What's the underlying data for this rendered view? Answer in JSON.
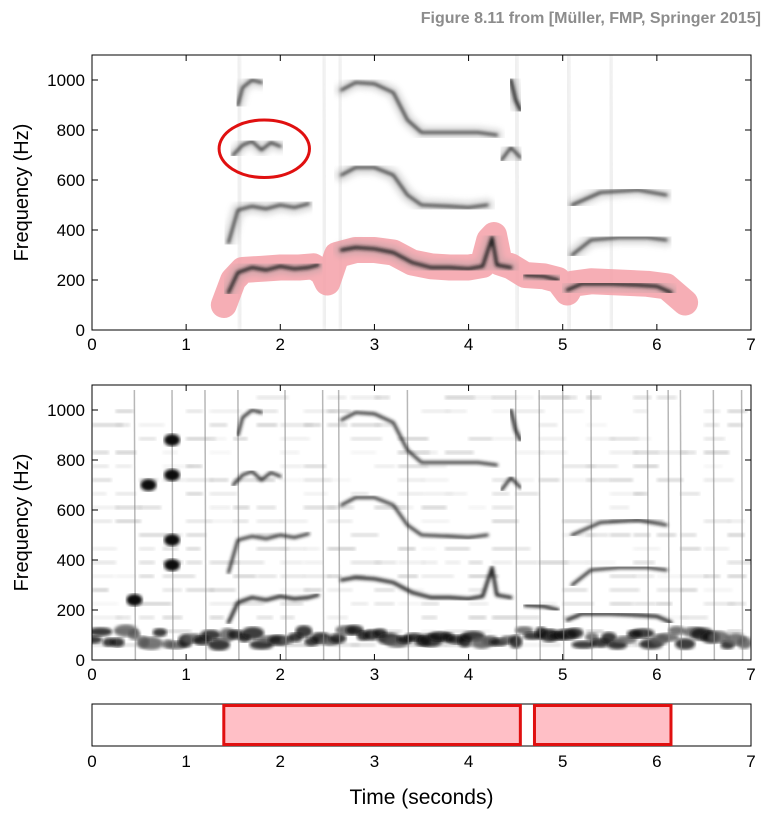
{
  "caption": "Figure 8.11 from [Müller, FMP, Springer 2015]",
  "chart_data": [
    {
      "type": "heatmap",
      "panel": "top",
      "description_of_content": "salience representation with extracted melody",
      "ylabel": "Frequency (Hz)",
      "xlabel": "",
      "xlim": [
        0,
        7
      ],
      "ylim": [
        0,
        1100
      ],
      "xticks": [
        "0",
        "1",
        "2",
        "3",
        "4",
        "5",
        "6",
        "7"
      ],
      "yticks": [
        "0",
        "200",
        "400",
        "600",
        "800",
        "1000"
      ],
      "grid": false,
      "harmonics": [
        {
          "order": 1,
          "points": [
            [
              1.45,
              150
            ],
            [
              1.55,
              230
            ],
            [
              1.7,
              250
            ],
            [
              1.85,
              240
            ],
            [
              2.0,
              255
            ],
            [
              2.15,
              245
            ],
            [
              2.3,
              250
            ],
            [
              2.4,
              260
            ]
          ]
        },
        {
          "order": 2,
          "points": [
            [
              1.45,
              350
            ],
            [
              1.55,
              480
            ],
            [
              1.7,
              495
            ],
            [
              1.85,
              485
            ],
            [
              2.0,
              500
            ],
            [
              2.15,
              490
            ],
            [
              2.3,
              505
            ]
          ]
        },
        {
          "order": 3,
          "points": [
            [
              1.5,
              700
            ],
            [
              1.6,
              740
            ],
            [
              1.7,
              755
            ],
            [
              1.8,
              720
            ],
            [
              1.9,
              750
            ],
            [
              2.0,
              735
            ]
          ]
        },
        {
          "order": 4,
          "points": [
            [
              1.55,
              900
            ],
            [
              1.6,
              970
            ],
            [
              1.7,
              1000
            ],
            [
              1.8,
              990
            ]
          ]
        },
        {
          "order": 1,
          "points": [
            [
              2.65,
              320
            ],
            [
              2.8,
              330
            ],
            [
              3.0,
              325
            ],
            [
              3.2,
              310
            ],
            [
              3.4,
              270
            ],
            [
              3.6,
              250
            ],
            [
              3.8,
              250
            ],
            [
              4.0,
              245
            ],
            [
              4.15,
              255
            ],
            [
              4.25,
              370
            ],
            [
              4.3,
              260
            ],
            [
              4.45,
              250
            ]
          ]
        },
        {
          "order": 2,
          "points": [
            [
              2.65,
              620
            ],
            [
              2.8,
              650
            ],
            [
              3.0,
              650
            ],
            [
              3.2,
              620
            ],
            [
              3.35,
              540
            ],
            [
              3.5,
              500
            ],
            [
              3.8,
              495
            ],
            [
              4.0,
              490
            ],
            [
              4.2,
              500
            ]
          ]
        },
        {
          "order": 3,
          "points": [
            [
              2.65,
              960
            ],
            [
              2.8,
              990
            ],
            [
              3.0,
              985
            ],
            [
              3.2,
              950
            ],
            [
              3.35,
              840
            ],
            [
              3.5,
              790
            ],
            [
              3.8,
              790
            ],
            [
              4.1,
              790
            ],
            [
              4.3,
              780
            ]
          ]
        },
        {
          "order": 2,
          "points": [
            [
              4.35,
              680
            ],
            [
              4.45,
              730
            ],
            [
              4.55,
              690
            ]
          ]
        },
        {
          "order": 1,
          "points": [
            [
              4.45,
              1000
            ],
            [
              4.5,
              920
            ],
            [
              4.55,
              880
            ]
          ]
        },
        {
          "order": 1,
          "points": [
            [
              4.6,
              220
            ],
            [
              4.8,
              215
            ],
            [
              4.95,
              200
            ]
          ]
        },
        {
          "order": 1,
          "points": [
            [
              5.05,
              160
            ],
            [
              5.2,
              185
            ],
            [
              5.5,
              185
            ],
            [
              5.8,
              180
            ],
            [
              6.0,
              175
            ],
            [
              6.15,
              150
            ]
          ]
        },
        {
          "order": 2,
          "points": [
            [
              5.1,
              300
            ],
            [
              5.3,
              360
            ],
            [
              5.6,
              370
            ],
            [
              5.9,
              370
            ],
            [
              6.1,
              360
            ]
          ]
        },
        {
          "order": 3,
          "points": [
            [
              5.1,
              500
            ],
            [
              5.4,
              550
            ],
            [
              5.8,
              560
            ],
            [
              6.1,
              540
            ]
          ]
        }
      ],
      "melody_path": [
        [
          1.4,
          100
        ],
        [
          1.5,
          200
        ],
        [
          1.6,
          240
        ],
        [
          1.8,
          245
        ],
        [
          2.0,
          250
        ],
        [
          2.2,
          250
        ],
        [
          2.35,
          255
        ],
        [
          2.45,
          230
        ],
        [
          2.5,
          190
        ],
        [
          2.6,
          300
        ],
        [
          2.8,
          320
        ],
        [
          3.0,
          320
        ],
        [
          3.2,
          310
        ],
        [
          3.4,
          270
        ],
        [
          3.6,
          255
        ],
        [
          3.8,
          250
        ],
        [
          4.0,
          250
        ],
        [
          4.15,
          260
        ],
        [
          4.22,
          360
        ],
        [
          4.27,
          380
        ],
        [
          4.33,
          270
        ],
        [
          4.45,
          255
        ],
        [
          4.6,
          220
        ],
        [
          4.8,
          215
        ],
        [
          4.95,
          200
        ],
        [
          5.05,
          150
        ],
        [
          5.1,
          185
        ],
        [
          5.3,
          195
        ],
        [
          5.6,
          190
        ],
        [
          5.9,
          185
        ],
        [
          6.1,
          175
        ],
        [
          6.3,
          110
        ]
      ],
      "ellipse": {
        "cx": 1.83,
        "cy": 725,
        "rx": 0.48,
        "ry": 115
      }
    },
    {
      "type": "heatmap",
      "panel": "middle",
      "ylabel": "Frequency (Hz)",
      "xlabel": "",
      "xlim": [
        0,
        7
      ],
      "ylim": [
        0,
        1100
      ],
      "xticks": [
        "0",
        "1",
        "2",
        "3",
        "4",
        "5",
        "6",
        "7"
      ],
      "yticks": [
        "0",
        "200",
        "400",
        "600",
        "800",
        "1000"
      ],
      "grid": false
    },
    {
      "type": "bar",
      "panel": "bottom",
      "xlabel": "Time (seconds)",
      "xlim": [
        0,
        7
      ],
      "xticks": [
        "0",
        "1",
        "2",
        "3",
        "4",
        "5",
        "6",
        "7"
      ],
      "segments": [
        {
          "start": 1.4,
          "end": 4.55
        },
        {
          "start": 4.7,
          "end": 6.15
        }
      ]
    }
  ],
  "colors": {
    "melody_band": "#f4a0a8",
    "segment_fill": "#ffbfc6",
    "segment_stroke": "#e01010",
    "ellipse_stroke": "#e01010",
    "caption_text": "#8c8c8c"
  }
}
